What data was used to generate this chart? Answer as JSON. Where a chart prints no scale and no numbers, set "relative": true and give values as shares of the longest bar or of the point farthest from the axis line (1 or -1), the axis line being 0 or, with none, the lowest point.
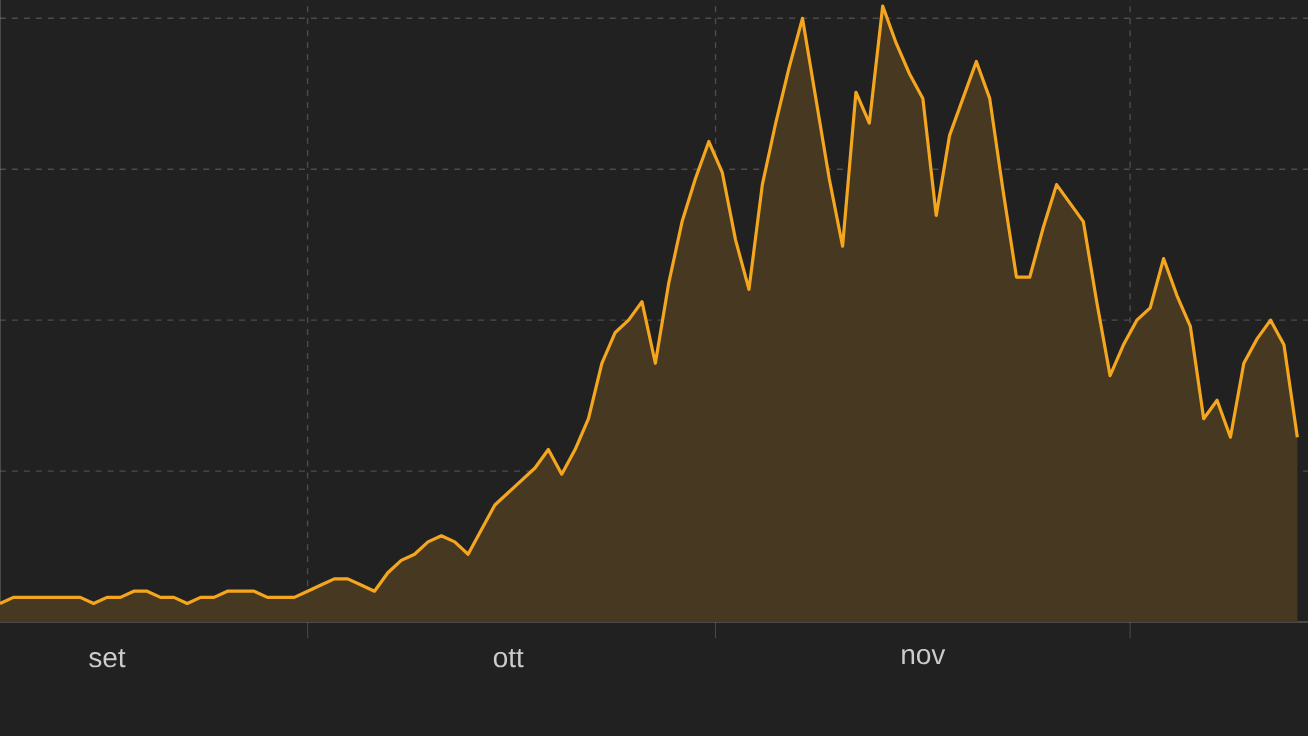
{
  "chart_data": {
    "type": "area",
    "relative": true,
    "color": "#f5a61f",
    "grid": true,
    "tick_labels": "x",
    "categories": [
      null,
      null,
      null,
      null,
      null,
      null,
      null,
      null,
      "set",
      null,
      null,
      null,
      null,
      null,
      null,
      null,
      null,
      null,
      null,
      null,
      null,
      null,
      null,
      null,
      null,
      null,
      null,
      null,
      null,
      null,
      null,
      null,
      null,
      null,
      null,
      null,
      null,
      null,
      "ott",
      null,
      null,
      null,
      null,
      null,
      null,
      null,
      null,
      null,
      null,
      null,
      null,
      null,
      null,
      null,
      null,
      null,
      null,
      null,
      null,
      null,
      null,
      null,
      null,
      null,
      null,
      null,
      null,
      null,
      null,
      "nov",
      null,
      null,
      null,
      null,
      null,
      null,
      null,
      null,
      null,
      null,
      null,
      null,
      null,
      null,
      null,
      null,
      null,
      null,
      null,
      null,
      null,
      null,
      null,
      null,
      null,
      null,
      null,
      null
    ],
    "values": [
      0.03,
      0.04,
      0.04,
      0.04,
      0.04,
      0.04,
      0.04,
      0.03,
      0.04,
      0.04,
      0.05,
      0.05,
      0.04,
      0.04,
      0.03,
      0.04,
      0.04,
      0.05,
      0.05,
      0.05,
      0.04,
      0.04,
      0.04,
      0.05,
      0.06,
      0.07,
      0.07,
      0.06,
      0.05,
      0.08,
      0.1,
      0.11,
      0.13,
      0.14,
      0.13,
      0.11,
      0.15,
      0.19,
      0.21,
      0.23,
      0.25,
      0.28,
      0.24,
      0.28,
      0.33,
      0.42,
      0.47,
      0.49,
      0.52,
      0.42,
      0.55,
      0.65,
      0.72,
      0.78,
      0.73,
      0.62,
      0.54,
      0.71,
      0.81,
      0.9,
      0.98,
      0.85,
      0.72,
      0.61,
      0.86,
      0.81,
      1.0,
      0.94,
      0.89,
      0.85,
      0.66,
      0.79,
      0.85,
      0.91,
      0.85,
      0.7,
      0.56,
      0.56,
      0.64,
      0.71,
      0.68,
      0.65,
      0.52,
      0.4,
      0.45,
      0.49,
      0.51,
      0.59,
      0.53,
      0.48,
      0.33,
      0.36,
      0.3,
      0.42,
      0.46,
      0.49,
      0.45,
      0.3
    ]
  }
}
